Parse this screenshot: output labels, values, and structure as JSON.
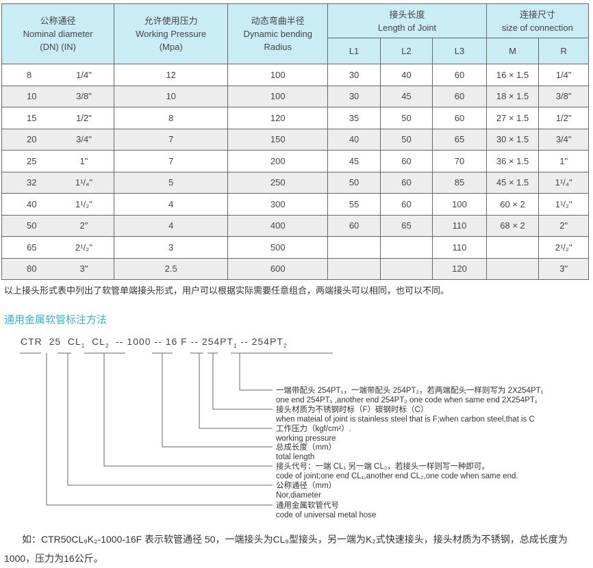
{
  "table": {
    "headers": {
      "nominal": [
        "公称通径",
        "Nominal diameter",
        "(DN)   (IN)"
      ],
      "pressure": [
        "允许使用压力",
        "Working Pressure",
        "(Mpa)"
      ],
      "radius": [
        "动态弯曲半径",
        "Dynamic bending",
        "Radius"
      ],
      "joint": [
        "接头长度",
        "Length of Joint"
      ],
      "conn": [
        "连接尺寸",
        "size of connection"
      ],
      "sub": [
        "L1",
        "L2",
        "L3",
        "M",
        "R"
      ]
    },
    "rows": [
      [
        "8",
        "1/4\"",
        "12",
        "100",
        "30",
        "40",
        "60",
        "16 × 1.5",
        "1/4\""
      ],
      [
        "10",
        "3/8\"",
        "10",
        "100",
        "30",
        "45",
        "60",
        "18 × 1.5",
        "3/8\""
      ],
      [
        "15",
        "1/2\"",
        "8",
        "120",
        "35",
        "50",
        "60",
        "27 × 1.5",
        "1/2\""
      ],
      [
        "20",
        "3/4\"",
        "7",
        "150",
        "40",
        "50",
        "65",
        "30 × 1.5",
        "3/4\""
      ],
      [
        "25",
        "1\"",
        "7",
        "200",
        "45",
        "60",
        "70",
        "36 × 1.5",
        "1\""
      ],
      [
        "32",
        "1¹/₄\"",
        "5",
        "250",
        "50",
        "60",
        "85",
        "45 × 1.5",
        "1¹/₄\""
      ],
      [
        "40",
        "1¹/₂\"",
        "4",
        "300",
        "55",
        "60",
        "100",
        "60 × 2",
        "1¹/₂\""
      ],
      [
        "50",
        "2\"",
        "4",
        "400",
        "60",
        "65",
        "110",
        "68 × 2",
        "2\""
      ],
      [
        "65",
        "2¹/₂\"",
        "3",
        "500",
        "",
        "",
        "110",
        "",
        "2¹/₂\""
      ],
      [
        "80",
        "3\"",
        "2.5",
        "600",
        "",
        "",
        "120",
        "",
        "3\""
      ]
    ]
  },
  "note": "以上接头形式表中列出了软管单端接头形式，用户可以根据实际需要任意组合，两端接头可以相同，也可以不同。",
  "section_title": "通用金属软管标注方法",
  "code_parts": [
    "CTR",
    "25",
    "CL",
    "1",
    "CL",
    "2",
    "--",
    "1000",
    "--",
    "16",
    "F",
    "--",
    "254PT",
    "1",
    "--",
    "254PT",
    "2"
  ],
  "labels": [
    [
      "一端带配头 254PT₁，一端带配头 254PT₂，若两端配头一样则写为 2X254PT₁",
      "one end 254PT₁ ,another end 254PT₂ one code when same end  2X254PT₁"
    ],
    [
      "接头材质为不锈钢时标（F）碳钢时标（C）",
      "when mateial of joint is stainless steel that is F;when carbon steel,that is C"
    ],
    [
      "工作压力（kgf/cm²）.",
      "working pressure"
    ],
    [
      "总成长度（mm）",
      "total length"
    ],
    [
      "接头代号：一端 CL₁ 另一端 CL₂，若接头一样则写一种即可。",
      "code of joint;one end CL₁,another end CL₂,one code when same end."
    ],
    [
      "公称通径（mm）",
      "Nor,diameter"
    ],
    [
      "通用金属软管代号",
      "code of universal metal hose"
    ]
  ],
  "example": "如：CTR50CL₉K₂-1000-16F 表示软管通径 50，一端接头为CL₉型接头，另一端为K₂式快速接头，接头材质为不锈钢，总成长度为1000，压力为16公斤。",
  "colors": {
    "header_bg": "#c9ecf5",
    "title": "#35b2d6"
  }
}
